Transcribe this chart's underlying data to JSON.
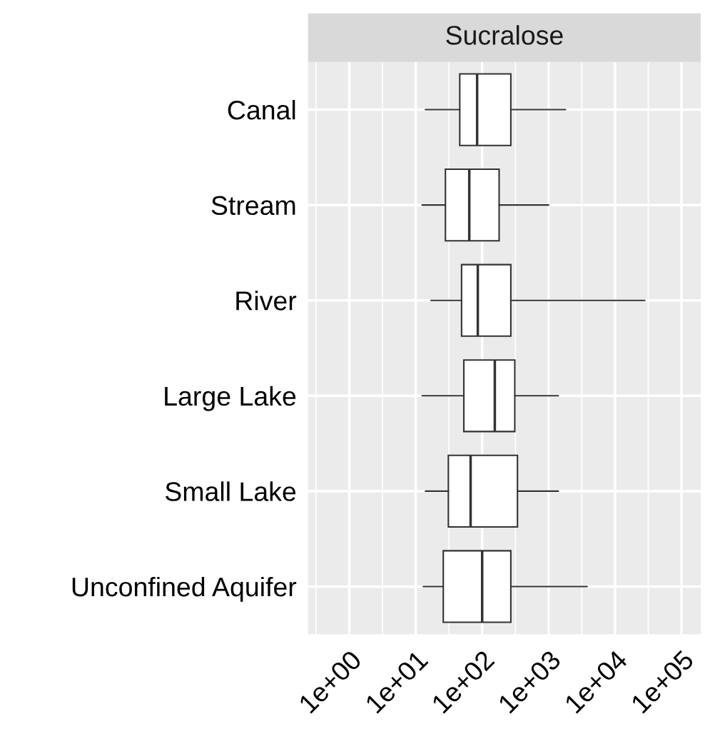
{
  "chart_data": {
    "type": "box",
    "title": "Sucralose",
    "orientation": "horizontal",
    "log": "x",
    "grid": true,
    "categories": [
      "Canal",
      "Stream",
      "River",
      "Large Lake",
      "Small Lake",
      "Unconfined Aquifer"
    ],
    "boxes": [
      {
        "low": 14,
        "q1": 46,
        "median": 84,
        "q3": 270,
        "high": 1800
      },
      {
        "low": 12.5,
        "q1": 28,
        "median": 64,
        "q3": 180,
        "high": 1000
      },
      {
        "low": 17,
        "q1": 49,
        "median": 86,
        "q3": 270,
        "high": 28000
      },
      {
        "low": 12.5,
        "q1": 53,
        "median": 155,
        "q3": 310,
        "high": 1400
      },
      {
        "low": 14,
        "q1": 31,
        "median": 67,
        "q3": 340,
        "high": 1400
      },
      {
        "low": 13,
        "q1": 26,
        "median": 100,
        "q3": 270,
        "high": 3800
      }
    ],
    "xlim": [
      0.24,
      195000
    ],
    "xticks": [
      {
        "value": 1,
        "label": "1e+00"
      },
      {
        "value": 10,
        "label": "1e+01"
      },
      {
        "value": 100,
        "label": "1e+02"
      },
      {
        "value": 1000,
        "label": "1e+03"
      },
      {
        "value": 10000,
        "label": "1e+04"
      },
      {
        "value": 100000,
        "label": "1e+05"
      }
    ]
  }
}
